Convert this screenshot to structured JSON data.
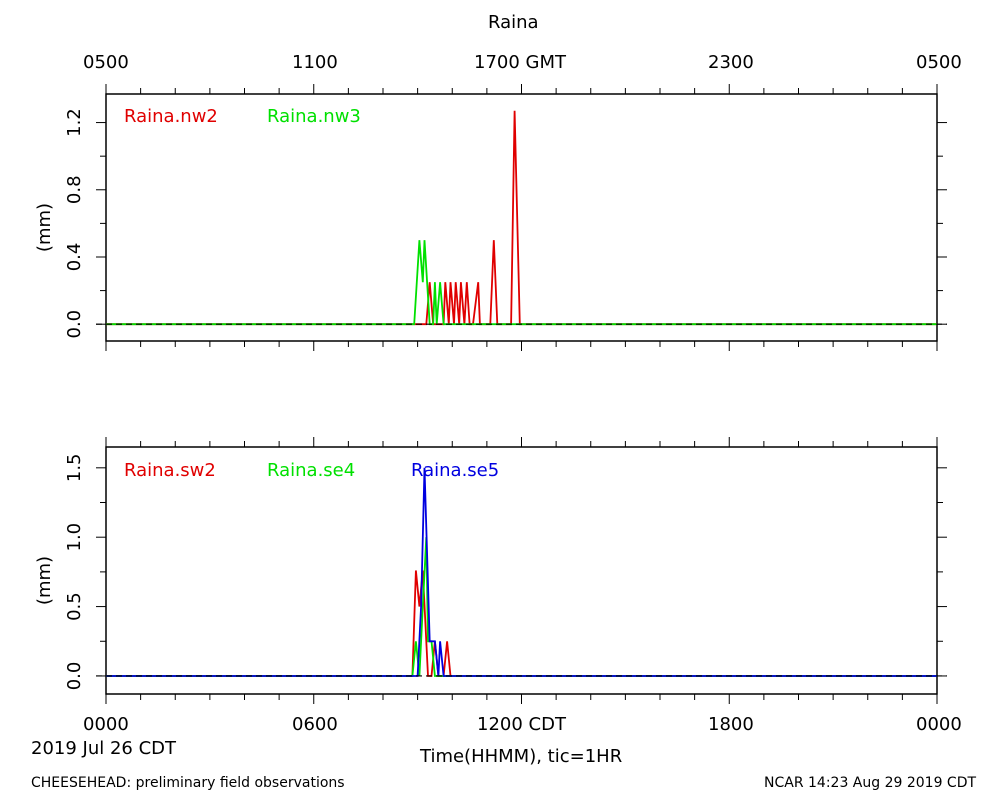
{
  "title": "Raina",
  "top_axis": {
    "ticks": [
      "0500",
      "1100",
      "1700 GMT",
      "2300",
      "0500"
    ]
  },
  "bottom_axis": {
    "ticks": [
      "0000",
      "0600",
      "1200 CDT",
      "1800",
      "0000"
    ],
    "date_label": "2019 Jul 26 CDT",
    "xlabel": "Time(HHMM), tic=1HR"
  },
  "footer": {
    "left": "CHEESEHEAD: preliminary field observations",
    "right": "NCAR 14:23 Aug 29 2019 CDT"
  },
  "colors": {
    "red": "#e00000",
    "green": "#00e000",
    "blue": "#0000e0",
    "zero_line": "#000000"
  },
  "chart_data": [
    {
      "type": "line",
      "ylabel": "(mm)",
      "ylim": [
        -0.1,
        1.37
      ],
      "yticks": [
        "0.0",
        "0.4",
        "0.8",
        "1.2"
      ],
      "ytick_values": [
        0,
        0.4,
        0.8,
        1.2
      ],
      "xlim": [
        0,
        24
      ],
      "x_unit": "hours CDT, 2019-07-26",
      "series": [
        {
          "name": "Raina.nw2",
          "color": "#e00000",
          "x": [
            0,
            9.25,
            9.35,
            9.45,
            9.55,
            9.75,
            9.8,
            9.9,
            9.95,
            10.05,
            10.1,
            10.2,
            10.25,
            10.35,
            10.42,
            10.5,
            10.55,
            10.6,
            10.75,
            10.8,
            10.85,
            11.1,
            11.2,
            11.3,
            11.6,
            11.7,
            11.8,
            11.95,
            12.05,
            12.15,
            24
          ],
          "y": [
            0,
            0,
            0.25,
            0,
            0,
            0,
            0.25,
            0,
            0.25,
            0,
            0.25,
            0,
            0.25,
            0,
            0.25,
            0,
            0,
            0,
            0.25,
            0,
            0,
            0,
            0.5,
            0,
            0,
            0,
            1.27,
            0,
            0,
            0,
            0
          ]
        },
        {
          "name": "Raina.nw3",
          "color": "#00e000",
          "x": [
            0,
            8.9,
            9.05,
            9.15,
            9.2,
            9.35,
            9.45,
            9.5,
            9.55,
            9.65,
            9.75,
            24
          ],
          "y": [
            0,
            0,
            0.5,
            0.25,
            0.5,
            0,
            0,
            0.25,
            0,
            0.25,
            0,
            0
          ]
        }
      ]
    },
    {
      "type": "line",
      "ylabel": "(mm)",
      "ylim": [
        -0.13,
        1.65
      ],
      "yticks": [
        "0.0",
        "0.5",
        "1.0",
        "1.5"
      ],
      "ytick_values": [
        0,
        0.5,
        1.0,
        1.5
      ],
      "xlim": [
        0,
        24
      ],
      "x_unit": "hours CDT, 2019-07-26",
      "series": [
        {
          "name": "Raina.sw2",
          "color": "#e00000",
          "x": [
            0,
            8.85,
            8.95,
            9.05,
            9.15,
            9.3,
            9.4,
            9.5,
            9.6,
            9.75,
            9.85,
            9.95,
            24
          ],
          "y": [
            0,
            0,
            0.76,
            0.5,
            0.76,
            0,
            0,
            0.25,
            0,
            0,
            0.25,
            0,
            0
          ]
        },
        {
          "name": "Raina.se4",
          "color": "#00e000",
          "x": [
            0,
            8.85,
            8.95,
            9.05,
            9.15,
            9.25,
            9.3,
            9.4,
            9.5,
            24
          ],
          "y": [
            0,
            0,
            0.25,
            0,
            0.5,
            1.0,
            0.25,
            0.25,
            0,
            0
          ]
        },
        {
          "name": "Raina.se5",
          "color": "#0000e0",
          "x": [
            0,
            9.0,
            9.1,
            9.2,
            9.35,
            9.5,
            9.6,
            9.65,
            9.75,
            24
          ],
          "y": [
            0,
            0,
            0.5,
            1.5,
            0.25,
            0.25,
            0,
            0.25,
            0,
            0
          ]
        }
      ]
    }
  ]
}
